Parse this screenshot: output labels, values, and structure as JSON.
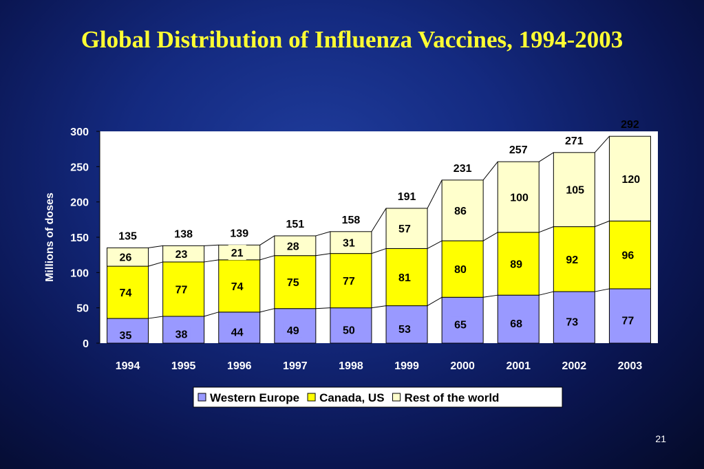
{
  "slide": {
    "title": "Global Distribution of Influenza Vaccines, 1994-2003",
    "page_number": "21",
    "background_color": "#142a80",
    "title_color": "#ffff33"
  },
  "chart_data": {
    "type": "bar",
    "stacked": true,
    "title": "Global Distribution of Influenza Vaccines, 1994-2003",
    "xlabel": "",
    "ylabel": "Millions of doses",
    "ylim": [
      0,
      300
    ],
    "yticks": [
      0,
      50,
      100,
      150,
      200,
      250,
      300
    ],
    "categories": [
      "1994",
      "1995",
      "1996",
      "1997",
      "1998",
      "1999",
      "2000",
      "2001",
      "2002",
      "2003"
    ],
    "series": [
      {
        "name": "Western Europe",
        "color": "#9999ff",
        "values": [
          35,
          38,
          44,
          49,
          50,
          53,
          65,
          68,
          73,
          77
        ]
      },
      {
        "name": "Canada, US",
        "color": "#ffff00",
        "values": [
          74,
          77,
          74,
          75,
          77,
          81,
          80,
          89,
          92,
          96
        ]
      },
      {
        "name": "Rest of the world",
        "color": "#ffffcc",
        "values": [
          26,
          23,
          21,
          28,
          31,
          57,
          86,
          100,
          105,
          120
        ]
      }
    ],
    "totals": [
      135,
      138,
      139,
      151,
      158,
      191,
      231,
      257,
      271,
      292
    ],
    "series_lines": true,
    "grid": false,
    "legend_position": "bottom"
  }
}
